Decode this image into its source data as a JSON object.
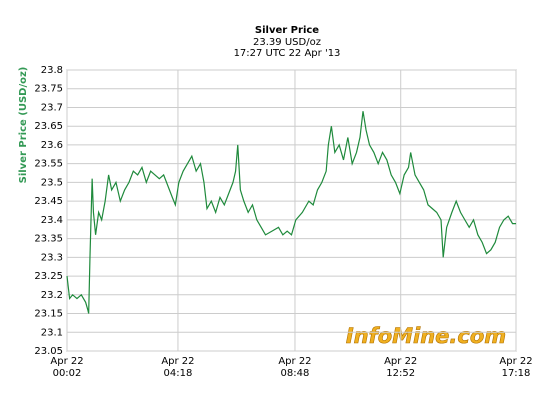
{
  "chart_data": {
    "type": "line",
    "title": "Silver Price",
    "subtitle": "23.39 USD/oz",
    "timestamp": "17:27 UTC 22 Apr '13",
    "y_label": "Silver Price (USD/oz)",
    "watermark": "InfoMine.com",
    "grid": true,
    "color": "#1f8a3c",
    "xlim": [
      2,
      1038
    ],
    "xticks": [
      {
        "value": 2,
        "label": "Apr 22\n00:02"
      },
      {
        "value": 258,
        "label": "Apr 22\n04:18"
      },
      {
        "value": 528,
        "label": "Apr 22\n08:48"
      },
      {
        "value": 772,
        "label": "Apr 22\n12:52"
      },
      {
        "value": 1038,
        "label": "Apr 22\n17:18"
      }
    ],
    "ylim": [
      23.05,
      23.8
    ],
    "yticks": [
      23.05,
      23.1,
      23.15,
      23.2,
      23.25,
      23.3,
      23.35,
      23.4,
      23.45,
      23.5,
      23.55,
      23.6,
      23.65,
      23.7,
      23.75,
      23.8
    ],
    "x": [
      2,
      8,
      15,
      25,
      35,
      45,
      50,
      52,
      55,
      60,
      63,
      68,
      75,
      82,
      90,
      98,
      105,
      115,
      125,
      135,
      145,
      155,
      165,
      175,
      185,
      195,
      205,
      215,
      225,
      235,
      245,
      252,
      260,
      270,
      280,
      290,
      300,
      310,
      318,
      325,
      335,
      345,
      355,
      365,
      375,
      385,
      391,
      396,
      402,
      410,
      420,
      430,
      440,
      450,
      460,
      475,
      490,
      500,
      510,
      520,
      530,
      545,
      560,
      570,
      580,
      590,
      600,
      605,
      612,
      620,
      630,
      640,
      650,
      660,
      670,
      678,
      685,
      692,
      700,
      710,
      720,
      730,
      740,
      750,
      760,
      770,
      780,
      790,
      795,
      805,
      815,
      825,
      835,
      845,
      855,
      865,
      870,
      878,
      890,
      900,
      910,
      920,
      930,
      940,
      950,
      960,
      970,
      980,
      990,
      1000,
      1010,
      1020,
      1030,
      1038
    ],
    "values": [
      23.25,
      23.19,
      23.2,
      23.19,
      23.2,
      23.18,
      23.16,
      23.15,
      23.3,
      23.51,
      23.42,
      23.36,
      23.42,
      23.4,
      23.45,
      23.52,
      23.48,
      23.5,
      23.45,
      23.48,
      23.5,
      23.53,
      23.52,
      23.54,
      23.5,
      23.53,
      23.52,
      23.51,
      23.52,
      23.49,
      23.46,
      23.44,
      23.5,
      23.53,
      23.55,
      23.57,
      23.53,
      23.55,
      23.5,
      23.43,
      23.45,
      23.42,
      23.46,
      23.44,
      23.47,
      23.5,
      23.53,
      23.6,
      23.48,
      23.45,
      23.42,
      23.44,
      23.4,
      23.38,
      23.36,
      23.37,
      23.38,
      23.36,
      23.37,
      23.36,
      23.4,
      23.42,
      23.45,
      23.44,
      23.48,
      23.5,
      23.53,
      23.6,
      23.65,
      23.58,
      23.6,
      23.56,
      23.62,
      23.55,
      23.58,
      23.62,
      23.69,
      23.64,
      23.6,
      23.58,
      23.55,
      23.58,
      23.56,
      23.52,
      23.5,
      23.47,
      23.52,
      23.54,
      23.58,
      23.52,
      23.5,
      23.48,
      23.44,
      23.43,
      23.42,
      23.4,
      23.3,
      23.38,
      23.42,
      23.45,
      23.42,
      23.4,
      23.38,
      23.4,
      23.36,
      23.34,
      23.31,
      23.32,
      23.34,
      23.38,
      23.4,
      23.41,
      23.39,
      23.39
    ]
  }
}
